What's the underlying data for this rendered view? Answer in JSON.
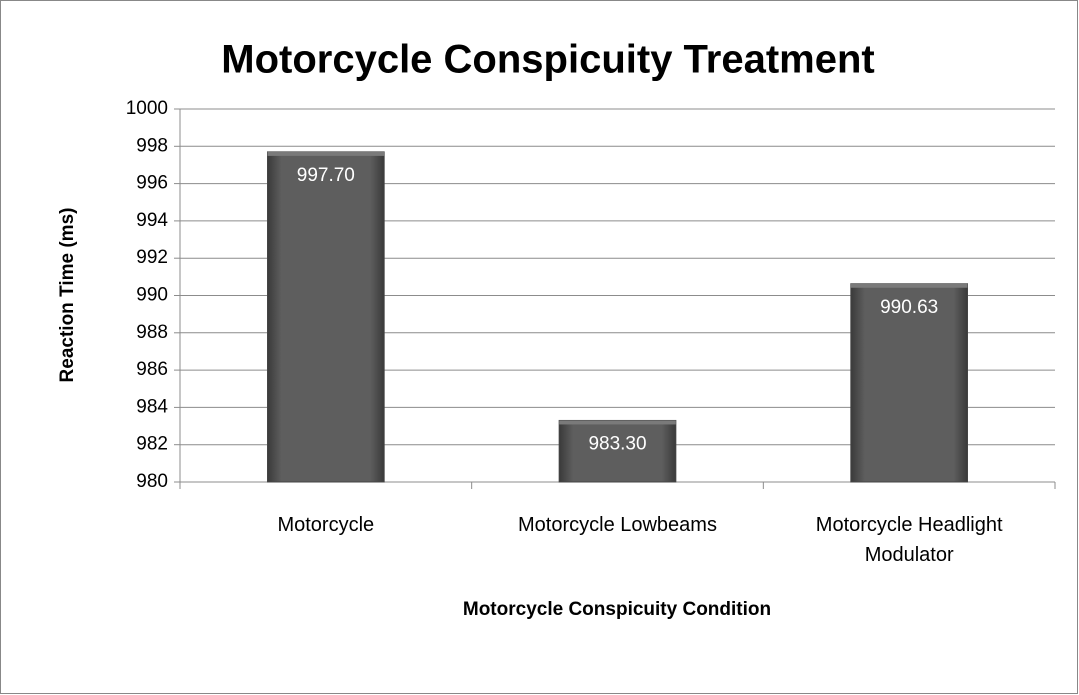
{
  "chart_data": {
    "type": "bar",
    "title": "Motorcycle Conspicuity Treatment",
    "xlabel": "Motorcycle Conspicuity Condition",
    "ylabel": "Reaction Time (ms)",
    "categories": [
      "Motorcycle",
      "Motorcycle Lowbeams",
      "Motorcycle Headlight Modulator"
    ],
    "values": [
      997.7,
      983.3,
      990.63
    ],
    "value_labels": [
      "997.70",
      "983.30",
      "990.63"
    ],
    "color": "#555555",
    "ylim": [
      980,
      1000
    ],
    "yticks": [
      980,
      982,
      984,
      986,
      988,
      990,
      992,
      994,
      996,
      998,
      1000
    ],
    "grid": true
  }
}
